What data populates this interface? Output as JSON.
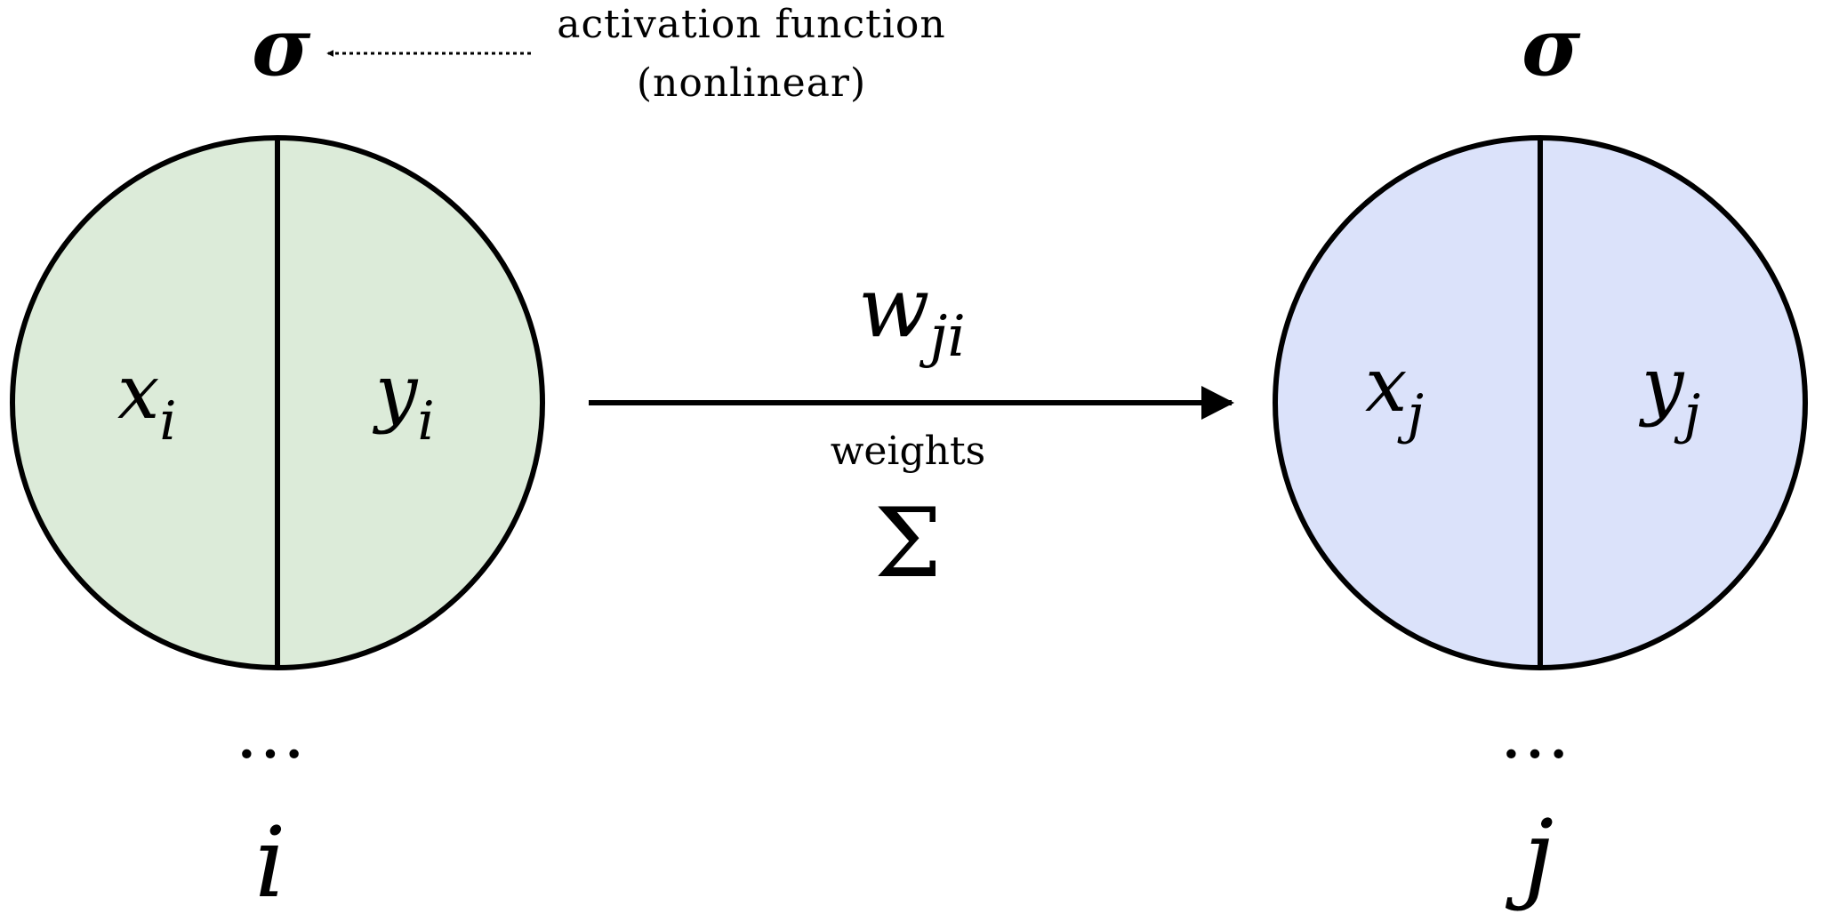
{
  "activation": {
    "symbol_left": "σ",
    "symbol_right": "σ",
    "caption_line1": "activation function",
    "caption_line2": "(nonlinear)"
  },
  "neuron_i": {
    "input_var": "x",
    "input_sub": "i",
    "output_var": "y",
    "output_sub": "i",
    "ellipsis": "…",
    "index_label": "i",
    "fill_color": "#dcebd9"
  },
  "neuron_j": {
    "input_var": "x",
    "input_sub": "j",
    "output_var": "y",
    "output_sub": "j",
    "ellipsis": "…",
    "index_label": "j",
    "fill_color": "#dbe2fa"
  },
  "connection": {
    "weight_var": "w",
    "weight_sub": "ji",
    "caption": "weights",
    "sum_symbol": "Σ"
  }
}
